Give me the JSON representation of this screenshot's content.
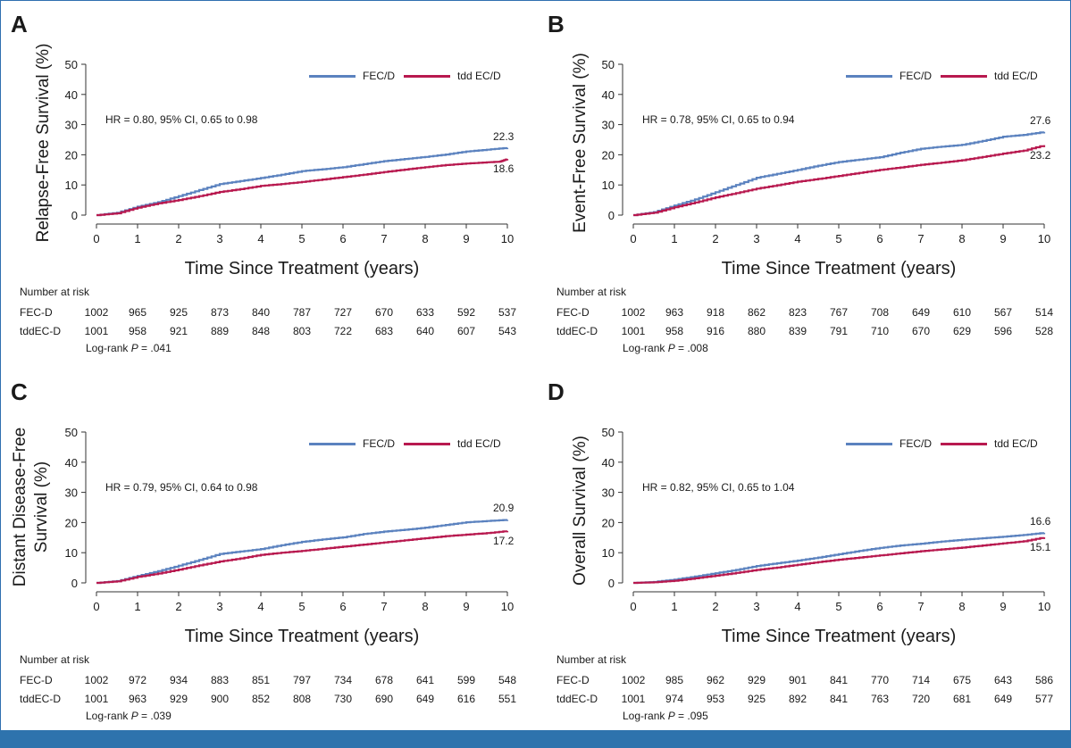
{
  "legend": {
    "series1": "FEC/D",
    "series2": "tdd EC/D"
  },
  "colors": {
    "series1": "#5b82bf",
    "series2": "#b8194f"
  },
  "risk_title": "Number at risk",
  "risk_rows": [
    "FEC-D",
    "tddEC-D"
  ],
  "chart_data": [
    {
      "panel_label": "A",
      "type": "line",
      "ylabel": "Relapse-Free Survival (%)",
      "xlabel": "Time Since Treatment (years)",
      "xlim": [
        0,
        10
      ],
      "ylim": [
        0,
        50
      ],
      "x_ticks": [
        0,
        1,
        2,
        3,
        4,
        5,
        6,
        7,
        8,
        9,
        10
      ],
      "y_ticks": [
        0,
        10,
        20,
        30,
        40,
        50
      ],
      "hr_text": "HR = 0.80, 95% CI, 0.65 to 0.98",
      "end_labels": [
        "22.3",
        "18.6"
      ],
      "series": [
        {
          "name": "FEC/D",
          "x": [
            0,
            0.5,
            1,
            1.5,
            2,
            2.5,
            3,
            3.5,
            4,
            4.5,
            5,
            5.5,
            6,
            6.5,
            7,
            7.5,
            8,
            8.5,
            9,
            9.5,
            10
          ],
          "y": [
            0,
            0.8,
            2.8,
            4.3,
            6.3,
            8.3,
            10.3,
            11.3,
            12.3,
            13.4,
            14.6,
            15.2,
            15.9,
            16.9,
            17.9,
            18.6,
            19.3,
            20.1,
            21.1,
            21.7,
            22.3
          ]
        },
        {
          "name": "tdd EC/D",
          "x": [
            0,
            0.5,
            1,
            1.5,
            2,
            2.5,
            3,
            3.5,
            4,
            4.5,
            5,
            5.5,
            6,
            6.5,
            7,
            7.5,
            8,
            8.5,
            9,
            9.5,
            9.8,
            10
          ],
          "y": [
            0,
            0.6,
            2.5,
            3.9,
            5.0,
            6.3,
            7.7,
            8.6,
            9.7,
            10.3,
            11.0,
            11.8,
            12.6,
            13.4,
            14.3,
            15.1,
            15.9,
            16.6,
            17.1,
            17.5,
            17.7,
            18.6
          ]
        }
      ],
      "risk": {
        "FEC-D": [
          "1002",
          "965",
          "925",
          "873",
          "840",
          "787",
          "727",
          "670",
          "633",
          "592",
          "537"
        ],
        "tddEC-D": [
          "1001",
          "958",
          "921",
          "889",
          "848",
          "803",
          "722",
          "683",
          "640",
          "607",
          "543"
        ]
      },
      "logrank": {
        "prefix": "Log-rank ",
        "p": "P",
        "value": " = .041"
      }
    },
    {
      "panel_label": "B",
      "type": "line",
      "ylabel": "Event-Free Survival (%)",
      "xlabel": "Time Since Treatment (years)",
      "xlim": [
        0,
        10
      ],
      "ylim": [
        0,
        50
      ],
      "x_ticks": [
        0,
        1,
        2,
        3,
        4,
        5,
        6,
        7,
        8,
        9,
        10
      ],
      "y_ticks": [
        0,
        10,
        20,
        30,
        40,
        50
      ],
      "hr_text": "HR = 0.78, 95% CI, 0.65 to 0.94",
      "end_labels": [
        "27.6",
        "23.2"
      ],
      "series": [
        {
          "name": "FEC/D",
          "x": [
            0,
            0.5,
            1,
            1.5,
            2,
            2.5,
            3,
            3.5,
            4,
            4.5,
            5,
            5.5,
            6,
            6.5,
            7,
            7.5,
            8,
            8.5,
            9,
            9.5,
            10
          ],
          "y": [
            0,
            1.0,
            3.2,
            5.2,
            7.6,
            10.0,
            12.4,
            13.7,
            15.0,
            16.4,
            17.6,
            18.4,
            19.2,
            20.7,
            22.0,
            22.7,
            23.3,
            24.6,
            26.0,
            26.6,
            27.6
          ]
        },
        {
          "name": "tdd EC/D",
          "x": [
            0,
            0.5,
            1,
            1.5,
            2,
            2.5,
            3,
            3.5,
            4,
            4.5,
            5,
            5.5,
            6,
            6.5,
            7,
            7.5,
            8,
            8.5,
            9,
            9.5,
            10
          ],
          "y": [
            0,
            0.8,
            2.6,
            4.2,
            5.9,
            7.3,
            8.8,
            9.9,
            11.1,
            12.0,
            13.0,
            14.0,
            15.0,
            15.8,
            16.7,
            17.4,
            18.2,
            19.3,
            20.4,
            21.4,
            23.2
          ]
        }
      ],
      "risk": {
        "FEC-D": [
          "1002",
          "963",
          "918",
          "862",
          "823",
          "767",
          "708",
          "649",
          "610",
          "567",
          "514"
        ],
        "tddEC-D": [
          "1001",
          "958",
          "916",
          "880",
          "839",
          "791",
          "710",
          "670",
          "629",
          "596",
          "528"
        ]
      },
      "logrank": {
        "prefix": "Log-rank ",
        "p": "P",
        "value": " = .008"
      }
    },
    {
      "panel_label": "C",
      "type": "line",
      "ylabel": "Distant Disease-Free Survival (%)",
      "xlabel": "Time Since Treatment (years)",
      "xlim": [
        0,
        10
      ],
      "ylim": [
        0,
        50
      ],
      "x_ticks": [
        0,
        1,
        2,
        3,
        4,
        5,
        6,
        7,
        8,
        9,
        10
      ],
      "y_ticks": [
        0,
        10,
        20,
        30,
        40,
        50
      ],
      "hr_text": "HR = 0.79, 95% CI, 0.64 to 0.98",
      "end_labels": [
        "20.9",
        "17.2"
      ],
      "series": [
        {
          "name": "FEC/D",
          "x": [
            0,
            0.5,
            1,
            1.5,
            2,
            2.5,
            3,
            3.5,
            4,
            4.5,
            5,
            5.5,
            6,
            6.5,
            7,
            7.5,
            8,
            8.5,
            9,
            9.5,
            10
          ],
          "y": [
            0,
            0.6,
            2.3,
            3.9,
            5.7,
            7.6,
            9.6,
            10.4,
            11.2,
            12.5,
            13.6,
            14.4,
            15.1,
            16.2,
            17.0,
            17.6,
            18.3,
            19.2,
            20.1,
            20.5,
            20.9
          ]
        },
        {
          "name": "tdd EC/D",
          "x": [
            0,
            0.5,
            1,
            1.5,
            2,
            2.5,
            3,
            3.5,
            4,
            4.5,
            5,
            5.5,
            6,
            6.5,
            7,
            7.5,
            8,
            8.5,
            9,
            9.5,
            10
          ],
          "y": [
            0,
            0.5,
            2.0,
            3.1,
            4.4,
            5.8,
            7.1,
            8.1,
            9.3,
            10.0,
            10.6,
            11.3,
            12.0,
            12.7,
            13.4,
            14.1,
            14.8,
            15.5,
            16.0,
            16.5,
            17.2
          ]
        }
      ],
      "risk": {
        "FEC-D": [
          "1002",
          "972",
          "934",
          "883",
          "851",
          "797",
          "734",
          "678",
          "641",
          "599",
          "548"
        ],
        "tddEC-D": [
          "1001",
          "963",
          "929",
          "900",
          "852",
          "808",
          "730",
          "690",
          "649",
          "616",
          "551"
        ]
      },
      "logrank": {
        "prefix": "Log-rank ",
        "p": "P",
        "value": " = .039"
      }
    },
    {
      "panel_label": "D",
      "type": "line",
      "ylabel": "Overall Survival (%)",
      "xlabel": "Time Since Treatment (years)",
      "xlim": [
        0,
        10
      ],
      "ylim": [
        0,
        50
      ],
      "x_ticks": [
        0,
        1,
        2,
        3,
        4,
        5,
        6,
        7,
        8,
        9,
        10
      ],
      "y_ticks": [
        0,
        10,
        20,
        30,
        40,
        50
      ],
      "hr_text": "HR = 0.82, 95% CI, 0.65 to 1.04",
      "end_labels": [
        "16.6",
        "15.1"
      ],
      "series": [
        {
          "name": "FEC/D",
          "x": [
            0,
            0.5,
            1,
            1.5,
            2,
            2.5,
            3,
            3.5,
            4,
            4.5,
            5,
            5.5,
            6,
            6.5,
            7,
            7.5,
            8,
            8.5,
            9,
            9.5,
            10
          ],
          "y": [
            0,
            0.3,
            1.1,
            2.1,
            3.2,
            4.3,
            5.6,
            6.5,
            7.4,
            8.4,
            9.5,
            10.6,
            11.6,
            12.4,
            13.0,
            13.7,
            14.3,
            14.8,
            15.3,
            15.9,
            16.6
          ]
        },
        {
          "name": "tdd EC/D",
          "x": [
            0,
            0.5,
            1,
            1.5,
            2,
            2.5,
            3,
            3.5,
            4,
            4.5,
            5,
            5.5,
            6,
            6.5,
            7,
            7.5,
            8,
            8.5,
            9,
            9.5,
            10
          ],
          "y": [
            0,
            0.2,
            0.7,
            1.5,
            2.4,
            3.3,
            4.3,
            5.1,
            6.0,
            6.9,
            7.7,
            8.4,
            9.1,
            9.8,
            10.5,
            11.1,
            11.7,
            12.4,
            13.1,
            13.8,
            15.1
          ]
        }
      ],
      "risk": {
        "FEC-D": [
          "1002",
          "985",
          "962",
          "929",
          "901",
          "841",
          "770",
          "714",
          "675",
          "643",
          "586"
        ],
        "tddEC-D": [
          "1001",
          "974",
          "953",
          "925",
          "892",
          "841",
          "763",
          "720",
          "681",
          "649",
          "577"
        ]
      },
      "logrank": {
        "prefix": "Log-rank ",
        "p": "P",
        "value": " = .095"
      }
    }
  ]
}
